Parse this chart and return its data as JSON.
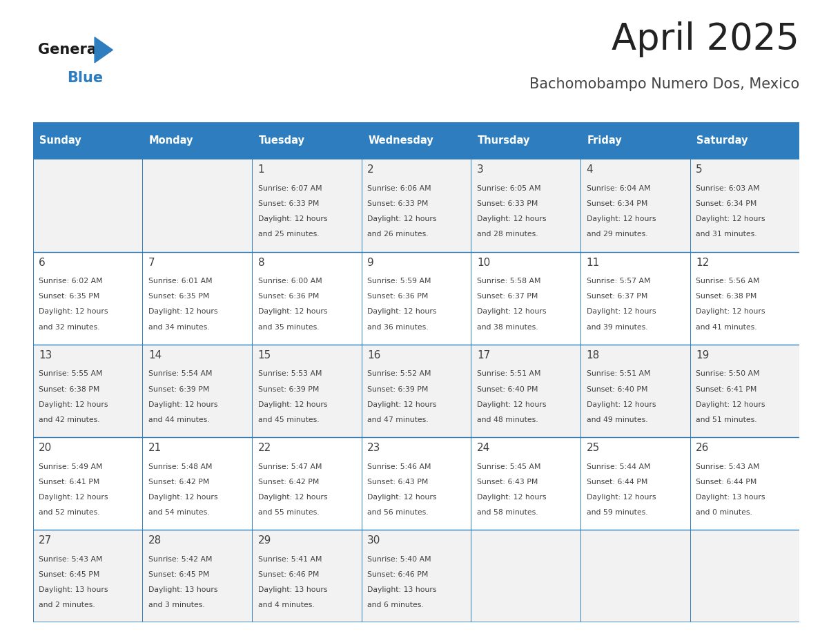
{
  "title": "April 2025",
  "subtitle": "Bachomobampo Numero Dos, Mexico",
  "days_of_week": [
    "Sunday",
    "Monday",
    "Tuesday",
    "Wednesday",
    "Thursday",
    "Friday",
    "Saturday"
  ],
  "header_bg": "#2e7ebf",
  "header_text": "#ffffff",
  "cell_bg_odd": "#f2f2f2",
  "cell_bg_even": "#ffffff",
  "cell_border": "#2e7ebf",
  "text_color": "#404040",
  "title_color": "#222222",
  "subtitle_color": "#444444",
  "logo_general_color": "#1a1a1a",
  "logo_blue_color": "#2e7ebf",
  "weeks": [
    [
      {
        "day": null,
        "sunrise": null,
        "sunset": null,
        "daylight": null
      },
      {
        "day": null,
        "sunrise": null,
        "sunset": null,
        "daylight": null
      },
      {
        "day": 1,
        "sunrise": "6:07 AM",
        "sunset": "6:33 PM",
        "daylight": "12 hours\nand 25 minutes."
      },
      {
        "day": 2,
        "sunrise": "6:06 AM",
        "sunset": "6:33 PM",
        "daylight": "12 hours\nand 26 minutes."
      },
      {
        "day": 3,
        "sunrise": "6:05 AM",
        "sunset": "6:33 PM",
        "daylight": "12 hours\nand 28 minutes."
      },
      {
        "day": 4,
        "sunrise": "6:04 AM",
        "sunset": "6:34 PM",
        "daylight": "12 hours\nand 29 minutes."
      },
      {
        "day": 5,
        "sunrise": "6:03 AM",
        "sunset": "6:34 PM",
        "daylight": "12 hours\nand 31 minutes."
      }
    ],
    [
      {
        "day": 6,
        "sunrise": "6:02 AM",
        "sunset": "6:35 PM",
        "daylight": "12 hours\nand 32 minutes."
      },
      {
        "day": 7,
        "sunrise": "6:01 AM",
        "sunset": "6:35 PM",
        "daylight": "12 hours\nand 34 minutes."
      },
      {
        "day": 8,
        "sunrise": "6:00 AM",
        "sunset": "6:36 PM",
        "daylight": "12 hours\nand 35 minutes."
      },
      {
        "day": 9,
        "sunrise": "5:59 AM",
        "sunset": "6:36 PM",
        "daylight": "12 hours\nand 36 minutes."
      },
      {
        "day": 10,
        "sunrise": "5:58 AM",
        "sunset": "6:37 PM",
        "daylight": "12 hours\nand 38 minutes."
      },
      {
        "day": 11,
        "sunrise": "5:57 AM",
        "sunset": "6:37 PM",
        "daylight": "12 hours\nand 39 minutes."
      },
      {
        "day": 12,
        "sunrise": "5:56 AM",
        "sunset": "6:38 PM",
        "daylight": "12 hours\nand 41 minutes."
      }
    ],
    [
      {
        "day": 13,
        "sunrise": "5:55 AM",
        "sunset": "6:38 PM",
        "daylight": "12 hours\nand 42 minutes."
      },
      {
        "day": 14,
        "sunrise": "5:54 AM",
        "sunset": "6:39 PM",
        "daylight": "12 hours\nand 44 minutes."
      },
      {
        "day": 15,
        "sunrise": "5:53 AM",
        "sunset": "6:39 PM",
        "daylight": "12 hours\nand 45 minutes."
      },
      {
        "day": 16,
        "sunrise": "5:52 AM",
        "sunset": "6:39 PM",
        "daylight": "12 hours\nand 47 minutes."
      },
      {
        "day": 17,
        "sunrise": "5:51 AM",
        "sunset": "6:40 PM",
        "daylight": "12 hours\nand 48 minutes."
      },
      {
        "day": 18,
        "sunrise": "5:51 AM",
        "sunset": "6:40 PM",
        "daylight": "12 hours\nand 49 minutes."
      },
      {
        "day": 19,
        "sunrise": "5:50 AM",
        "sunset": "6:41 PM",
        "daylight": "12 hours\nand 51 minutes."
      }
    ],
    [
      {
        "day": 20,
        "sunrise": "5:49 AM",
        "sunset": "6:41 PM",
        "daylight": "12 hours\nand 52 minutes."
      },
      {
        "day": 21,
        "sunrise": "5:48 AM",
        "sunset": "6:42 PM",
        "daylight": "12 hours\nand 54 minutes."
      },
      {
        "day": 22,
        "sunrise": "5:47 AM",
        "sunset": "6:42 PM",
        "daylight": "12 hours\nand 55 minutes."
      },
      {
        "day": 23,
        "sunrise": "5:46 AM",
        "sunset": "6:43 PM",
        "daylight": "12 hours\nand 56 minutes."
      },
      {
        "day": 24,
        "sunrise": "5:45 AM",
        "sunset": "6:43 PM",
        "daylight": "12 hours\nand 58 minutes."
      },
      {
        "day": 25,
        "sunrise": "5:44 AM",
        "sunset": "6:44 PM",
        "daylight": "12 hours\nand 59 minutes."
      },
      {
        "day": 26,
        "sunrise": "5:43 AM",
        "sunset": "6:44 PM",
        "daylight": "13 hours\nand 0 minutes."
      }
    ],
    [
      {
        "day": 27,
        "sunrise": "5:43 AM",
        "sunset": "6:45 PM",
        "daylight": "13 hours\nand 2 minutes."
      },
      {
        "day": 28,
        "sunrise": "5:42 AM",
        "sunset": "6:45 PM",
        "daylight": "13 hours\nand 3 minutes."
      },
      {
        "day": 29,
        "sunrise": "5:41 AM",
        "sunset": "6:46 PM",
        "daylight": "13 hours\nand 4 minutes."
      },
      {
        "day": 30,
        "sunrise": "5:40 AM",
        "sunset": "6:46 PM",
        "daylight": "13 hours\nand 6 minutes."
      },
      {
        "day": null,
        "sunrise": null,
        "sunset": null,
        "daylight": null
      },
      {
        "day": null,
        "sunrise": null,
        "sunset": null,
        "daylight": null
      },
      {
        "day": null,
        "sunrise": null,
        "sunset": null,
        "daylight": null
      }
    ]
  ]
}
